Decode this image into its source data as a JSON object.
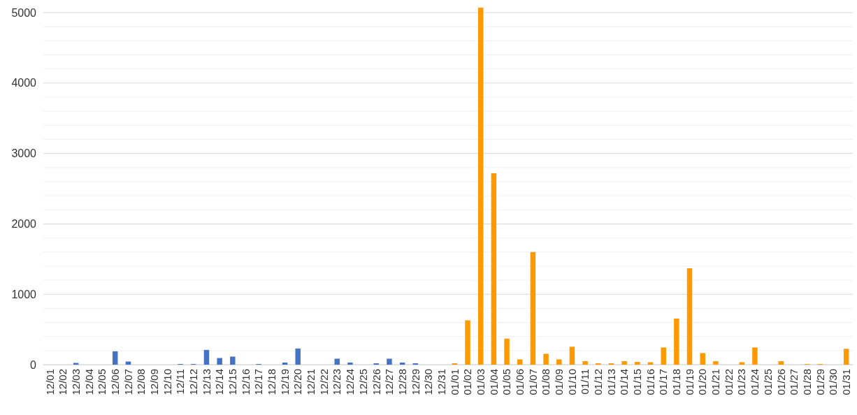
{
  "chart_data": {
    "type": "bar",
    "categories": [
      "12/01",
      "12/02",
      "12/03",
      "12/04",
      "12/05",
      "12/06",
      "12/07",
      "12/08",
      "12/09",
      "12/10",
      "12/11",
      "12/12",
      "12/13",
      "12/14",
      "12/15",
      "12/16",
      "12/17",
      "12/18",
      "12/19",
      "12/20",
      "12/21",
      "12/22",
      "12/23",
      "12/24",
      "12/25",
      "12/26",
      "12/27",
      "12/28",
      "12/29",
      "12/30",
      "12/31",
      "01/01",
      "01/02",
      "01/03",
      "01/04",
      "01/05",
      "01/06",
      "01/07",
      "01/08",
      "01/09",
      "01/10",
      "01/11",
      "01/12",
      "01/13",
      "01/14",
      "01/15",
      "01/16",
      "01/17",
      "01/18",
      "01/19",
      "01/20",
      "01/21",
      "01/22",
      "01/23",
      "01/24",
      "01/25",
      "01/26",
      "01/27",
      "01/28",
      "01/29",
      "01/30",
      "01/31"
    ],
    "values": [
      0,
      0,
      25,
      0,
      0,
      190,
      45,
      0,
      0,
      0,
      10,
      10,
      210,
      95,
      115,
      0,
      10,
      0,
      30,
      230,
      0,
      0,
      85,
      30,
      0,
      20,
      85,
      30,
      20,
      0,
      0,
      20,
      630,
      5070,
      2720,
      370,
      75,
      1600,
      155,
      75,
      255,
      50,
      20,
      20,
      50,
      40,
      35,
      245,
      655,
      1370,
      165,
      50,
      0,
      35,
      245,
      0,
      50,
      0,
      10,
      10,
      0,
      225
    ],
    "colors": [
      "#4472c4",
      "#4472c4",
      "#4472c4",
      "#4472c4",
      "#4472c4",
      "#4472c4",
      "#4472c4",
      "#4472c4",
      "#4472c4",
      "#4472c4",
      "#4472c4",
      "#4472c4",
      "#4472c4",
      "#4472c4",
      "#4472c4",
      "#4472c4",
      "#4472c4",
      "#4472c4",
      "#4472c4",
      "#4472c4",
      "#4472c4",
      "#4472c4",
      "#4472c4",
      "#4472c4",
      "#4472c4",
      "#4472c4",
      "#4472c4",
      "#4472c4",
      "#4472c4",
      "#4472c4",
      "#4472c4",
      "#ff9900",
      "#ff9900",
      "#ff9900",
      "#ff9900",
      "#ff9900",
      "#ff9900",
      "#ff9900",
      "#ff9900",
      "#ff9900",
      "#ff9900",
      "#ff9900",
      "#ff9900",
      "#ff9900",
      "#ff9900",
      "#ff9900",
      "#ff9900",
      "#ff9900",
      "#ff9900",
      "#ff9900",
      "#ff9900",
      "#ff9900",
      "#ff9900",
      "#ff9900",
      "#ff9900",
      "#ff9900",
      "#ff9900",
      "#ff9900",
      "#ff9900",
      "#ff9900",
      "#ff9900",
      "#ff9900"
    ],
    "ylim": [
      0,
      5100
    ],
    "yticks": [
      0,
      {
        "value": 200,
        "label": null
      },
      {
        "value": 400,
        "label": null
      },
      {
        "value": 600,
        "label": null
      },
      {
        "value": 800,
        "label": null
      },
      1000,
      {
        "value": 1200,
        "label": null
      },
      {
        "value": 1400,
        "label": null
      },
      {
        "value": 1600,
        "label": null
      },
      {
        "value": 1800,
        "label": null
      },
      2000,
      {
        "value": 2200,
        "label": null
      },
      {
        "value": 2400,
        "label": null
      },
      {
        "value": 2600,
        "label": null
      },
      {
        "value": 2800,
        "label": null
      },
      3000,
      {
        "value": 3200,
        "label": null
      },
      {
        "value": 3400,
        "label": null
      },
      {
        "value": 3600,
        "label": null
      },
      {
        "value": 3800,
        "label": null
      },
      4000,
      {
        "value": 4200,
        "label": null
      },
      {
        "value": 4400,
        "label": null
      },
      {
        "value": 4600,
        "label": null
      },
      {
        "value": 4800,
        "label": null
      },
      5000
    ],
    "grid": true
  }
}
